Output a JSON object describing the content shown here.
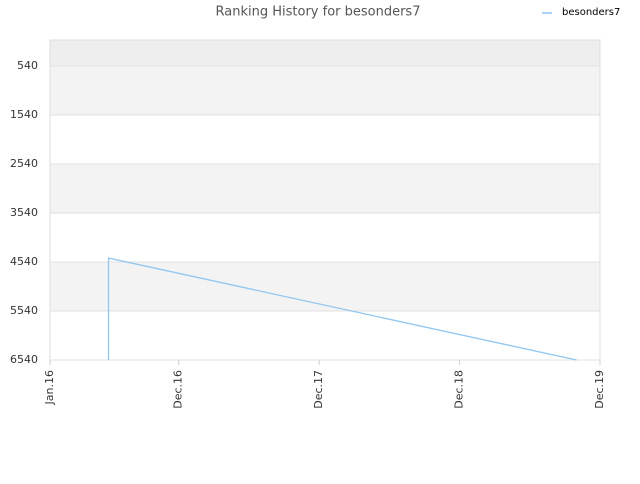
{
  "chart_data": {
    "type": "line",
    "title": "Ranking History for besonders7",
    "x": [
      "2016-06",
      "2016-06",
      "2019-10"
    ],
    "series": [
      {
        "name": "besonders7",
        "color": "#90c6f2",
        "values": [
          6540,
          4460,
          6540
        ]
      }
    ],
    "xlim": [
      "2016-01",
      "2019-12"
    ],
    "xticks": [
      {
        "value": "2016-01",
        "label": "Jan.16"
      },
      {
        "value": "2016-12",
        "label": "Dec.16"
      },
      {
        "value": "2017-12",
        "label": "Dec.17"
      },
      {
        "value": "2018-12",
        "label": "Dec.18"
      },
      {
        "value": "2019-12",
        "label": "Dec.19"
      }
    ],
    "ylim": [
      6540,
      10
    ],
    "yticks": [
      540,
      1540,
      2540,
      3540,
      4540,
      5540,
      6540
    ],
    "grid": true,
    "legend": "top-right"
  }
}
